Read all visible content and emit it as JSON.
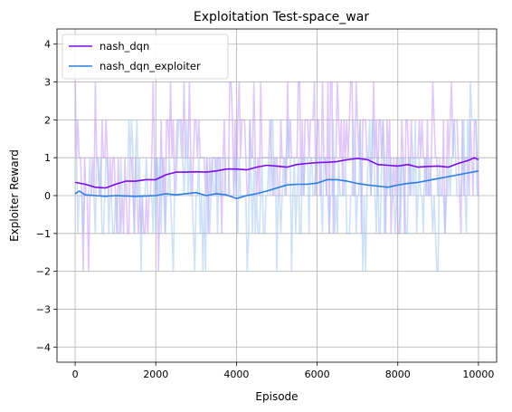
{
  "chart_data": {
    "type": "line",
    "title": "Exploitation Test-space_war",
    "xlabel": "Episode",
    "ylabel": "Exploiter Reward",
    "xlim": [
      -450,
      10450
    ],
    "ylim": [
      -4.4,
      4.4
    ],
    "x_ticks": [
      0,
      2000,
      4000,
      6000,
      8000,
      10000
    ],
    "y_ticks": [
      -4,
      -3,
      -2,
      -1,
      0,
      1,
      2,
      3,
      4
    ],
    "grid": true,
    "legend_position": "top-left",
    "x_range": [
      0,
      10000
    ],
    "series": [
      {
        "name": "nash_dqn",
        "color": "#7b0bed",
        "raw_color": "#c79cf5",
        "smoothed": [
          [
            0,
            0.35
          ],
          [
            250,
            0.3
          ],
          [
            500,
            0.22
          ],
          [
            750,
            0.2
          ],
          [
            1000,
            0.3
          ],
          [
            1250,
            0.38
          ],
          [
            1500,
            0.38
          ],
          [
            1750,
            0.42
          ],
          [
            2000,
            0.42
          ],
          [
            2250,
            0.55
          ],
          [
            2500,
            0.62
          ],
          [
            2750,
            0.62
          ],
          [
            3000,
            0.63
          ],
          [
            3250,
            0.62
          ],
          [
            3500,
            0.65
          ],
          [
            3750,
            0.7
          ],
          [
            4000,
            0.7
          ],
          [
            4250,
            0.68
          ],
          [
            4500,
            0.75
          ],
          [
            4750,
            0.8
          ],
          [
            5000,
            0.78
          ],
          [
            5250,
            0.75
          ],
          [
            5500,
            0.82
          ],
          [
            5750,
            0.85
          ],
          [
            6000,
            0.87
          ],
          [
            6250,
            0.88
          ],
          [
            6500,
            0.9
          ],
          [
            6750,
            0.95
          ],
          [
            7000,
            0.98
          ],
          [
            7250,
            0.95
          ],
          [
            7500,
            0.82
          ],
          [
            7750,
            0.8
          ],
          [
            8000,
            0.78
          ],
          [
            8250,
            0.82
          ],
          [
            8500,
            0.75
          ],
          [
            8750,
            0.77
          ],
          [
            9000,
            0.78
          ],
          [
            9250,
            0.75
          ],
          [
            9500,
            0.85
          ],
          [
            9750,
            0.93
          ],
          [
            9900,
            1.0
          ],
          [
            10000,
            0.95
          ]
        ]
      },
      {
        "name": "nash_dqn_exploiter",
        "color": "#2a7de1",
        "raw_color": "#a6c9ee",
        "smoothed": [
          [
            0,
            0.05
          ],
          [
            100,
            0.12
          ],
          [
            250,
            0.02
          ],
          [
            500,
            0.0
          ],
          [
            750,
            -0.02
          ],
          [
            1000,
            0.0
          ],
          [
            1250,
            -0.01
          ],
          [
            1500,
            -0.02
          ],
          [
            1750,
            -0.01
          ],
          [
            2000,
            0.0
          ],
          [
            2250,
            0.05
          ],
          [
            2500,
            0.02
          ],
          [
            2750,
            0.05
          ],
          [
            3000,
            0.08
          ],
          [
            3250,
            0.0
          ],
          [
            3500,
            0.05
          ],
          [
            3750,
            0.02
          ],
          [
            4000,
            -0.08
          ],
          [
            4250,
            0.0
          ],
          [
            4500,
            0.05
          ],
          [
            4750,
            0.12
          ],
          [
            5000,
            0.2
          ],
          [
            5250,
            0.28
          ],
          [
            5500,
            0.3
          ],
          [
            5750,
            0.3
          ],
          [
            6000,
            0.33
          ],
          [
            6250,
            0.42
          ],
          [
            6500,
            0.42
          ],
          [
            6750,
            0.38
          ],
          [
            7000,
            0.32
          ],
          [
            7250,
            0.28
          ],
          [
            7500,
            0.25
          ],
          [
            7750,
            0.22
          ],
          [
            8000,
            0.28
          ],
          [
            8250,
            0.32
          ],
          [
            8500,
            0.35
          ],
          [
            8750,
            0.4
          ],
          [
            9000,
            0.45
          ],
          [
            9250,
            0.5
          ],
          [
            9500,
            0.55
          ],
          [
            9750,
            0.6
          ],
          [
            10000,
            0.65
          ]
        ]
      }
    ]
  }
}
